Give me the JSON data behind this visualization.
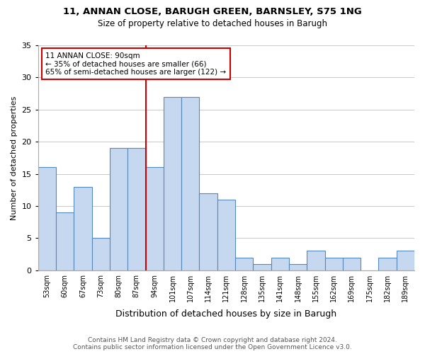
{
  "title1": "11, ANNAN CLOSE, BARUGH GREEN, BARNSLEY, S75 1NG",
  "title2": "Size of property relative to detached houses in Barugh",
  "xlabel": "Distribution of detached houses by size in Barugh",
  "ylabel": "Number of detached properties",
  "bar_labels": [
    "53sqm",
    "60sqm",
    "67sqm",
    "73sqm",
    "80sqm",
    "87sqm",
    "94sqm",
    "101sqm",
    "107sqm",
    "114sqm",
    "121sqm",
    "128sqm",
    "135sqm",
    "141sqm",
    "148sqm",
    "155sqm",
    "162sqm",
    "169sqm",
    "175sqm",
    "182sqm",
    "189sqm"
  ],
  "bar_values": [
    16,
    9,
    13,
    5,
    19,
    19,
    16,
    27,
    27,
    12,
    11,
    2,
    1,
    2,
    1,
    3,
    2,
    2,
    0,
    2,
    3
  ],
  "bar_color": "#c5d8f0",
  "bar_edge_color": "#5588bb",
  "annotation_line1": "11 ANNAN CLOSE: 90sqm",
  "annotation_line2": "← 35% of detached houses are smaller (66)",
  "annotation_line3": "65% of semi-detached houses are larger (122) →",
  "annotation_box_edge": "#cc0000",
  "annotation_box_bg": "#ffffff",
  "vline_color": "#cc0000",
  "ylim": [
    0,
    35
  ],
  "yticks": [
    0,
    5,
    10,
    15,
    20,
    25,
    30,
    35
  ],
  "footer1": "Contains HM Land Registry data © Crown copyright and database right 2024.",
  "footer2": "Contains public sector information licensed under the Open Government Licence v3.0.",
  "bg_color": "#ffffff",
  "grid_color": "#cccccc"
}
